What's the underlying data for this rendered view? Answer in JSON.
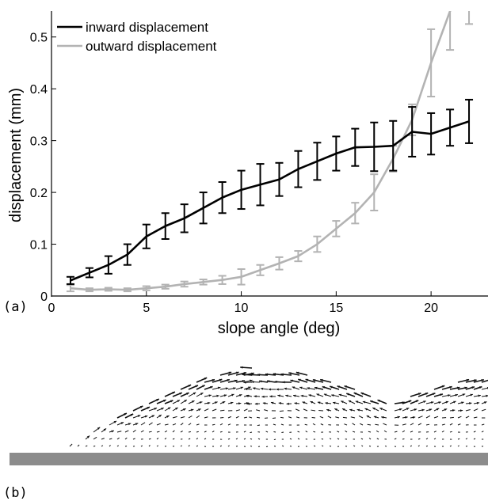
{
  "panels": {
    "a": "(a)",
    "b": "(b)"
  },
  "chart_data": {
    "type": "line",
    "title": "",
    "xlabel": "slope angle (deg)",
    "ylabel": "displacement (mm)",
    "xlim": [
      0,
      23
    ],
    "ylim": [
      0,
      0.55
    ],
    "xticks": [
      0,
      5,
      10,
      15,
      20
    ],
    "yticks": [
      0,
      0.1,
      0.2,
      0.3,
      0.4,
      0.5
    ],
    "xtick_labels": [
      "0",
      "5",
      "10",
      "15",
      "20"
    ],
    "ytick_labels": [
      "0",
      "0.1",
      "0.2",
      "0.3",
      "0.4",
      "0.5"
    ],
    "grid": false,
    "legend_position": "top-left",
    "x": [
      1,
      2,
      3,
      4,
      5,
      6,
      7,
      8,
      9,
      10,
      11,
      12,
      13,
      14,
      15,
      16,
      17,
      18,
      19,
      20,
      21,
      22
    ],
    "series": [
      {
        "name": "inward displacement",
        "color": "#000000",
        "values": [
          0.03,
          0.045,
          0.06,
          0.08,
          0.115,
          0.135,
          0.15,
          0.17,
          0.19,
          0.205,
          0.215,
          0.225,
          0.245,
          0.26,
          0.275,
          0.287,
          0.288,
          0.29,
          0.317,
          0.313,
          0.325,
          0.337
        ],
        "errors": [
          0.007,
          0.009,
          0.017,
          0.02,
          0.023,
          0.025,
          0.027,
          0.03,
          0.03,
          0.037,
          0.04,
          0.032,
          0.035,
          0.036,
          0.033,
          0.036,
          0.047,
          0.048,
          0.048,
          0.04,
          0.035,
          0.042
        ]
      },
      {
        "name": "outward displacement",
        "color": "#b3b3b3",
        "values": [
          0.015,
          0.012,
          0.013,
          0.012,
          0.015,
          0.018,
          0.023,
          0.027,
          0.031,
          0.037,
          0.05,
          0.063,
          0.077,
          0.1,
          0.13,
          0.16,
          0.2,
          0.265,
          0.34,
          0.45,
          0.55,
          0.6
        ],
        "errors": [
          0.006,
          0.003,
          0.003,
          0.003,
          0.004,
          0.004,
          0.005,
          0.005,
          0.008,
          0.015,
          0.01,
          0.012,
          0.01,
          0.015,
          0.015,
          0.02,
          0.035,
          0.025,
          0.03,
          0.065,
          0.075,
          0.075
        ]
      }
    ]
  },
  "flow_field": {
    "description_free": true,
    "surface_profile": [
      [
        0.0,
        0.035
      ],
      [
        0.1,
        0.0
      ],
      [
        0.2,
        0.35
      ],
      [
        0.3,
        0.6
      ],
      [
        0.4,
        0.86
      ],
      [
        0.5,
        1.0
      ],
      [
        0.6,
        0.95
      ],
      [
        0.7,
        0.8
      ],
      [
        0.8,
        0.6
      ],
      [
        0.9,
        0.78
      ],
      [
        1.0,
        0.92
      ]
    ]
  }
}
